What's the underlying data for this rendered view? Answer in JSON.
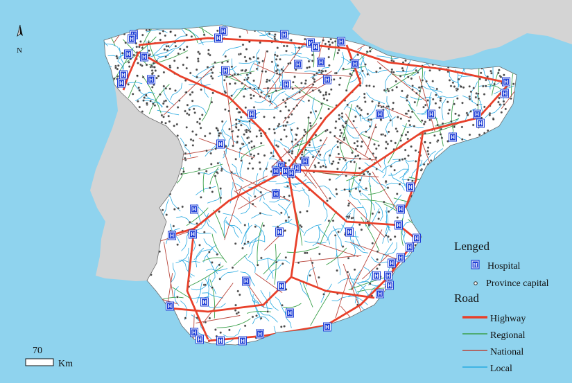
{
  "map": {
    "colors": {
      "sea": "#8fd3ee",
      "land": "#ffffff",
      "neighbor": "#d4d4d4",
      "highway": "#e8402a",
      "regional": "#3aa04a",
      "national": "#b8443a",
      "local": "#27a9e1",
      "capital": "#2c2c2c",
      "hospital": "#1f3fd6"
    },
    "north_arrow": {
      "label": "N"
    },
    "scale_bar": {
      "value": "70",
      "unit": "Km"
    },
    "legend": {
      "title": "Lenged",
      "hospital_icon_text": "H",
      "hospital_label": "Hospital",
      "capital_label": "Province capital",
      "road_title": "Road",
      "roads": [
        {
          "key": "highway",
          "label": "Highway"
        },
        {
          "key": "regional",
          "label": "Regional"
        },
        {
          "key": "national",
          "label": "National"
        },
        {
          "key": "local",
          "label": "Local"
        }
      ]
    },
    "hospital_count": 62
  }
}
